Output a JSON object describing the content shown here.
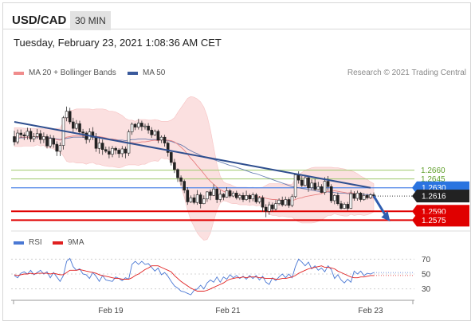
{
  "header": {
    "symbol": "USD/CAD",
    "timeframe": "30 MIN"
  },
  "datetime": "Tuesday, February 23, 2021 1:08:36 AM CET",
  "legend": {
    "ma20_label": "MA 20 + Bollinger Bands",
    "ma50_label": "MA 50",
    "credit": "Research © 2021 Trading Central",
    "rsi_label": "RSI",
    "ma9_label": "9MA"
  },
  "colors": {
    "bollinger": "#f4a6a6",
    "ma50": "#3a5a9c",
    "rsi": "#4a78d4",
    "ma9": "#e02020",
    "support": "#e00000",
    "resistance": "#9ec96b",
    "pivot": "#4f86e8"
  },
  "chart_data": {
    "type": "candlestick",
    "x_ticks": [
      "Feb 19",
      "Feb 21",
      "Feb 23"
    ],
    "levels": [
      {
        "value": 1.266,
        "label": "1.2660",
        "kind": "resistance"
      },
      {
        "value": 1.2645,
        "label": "1.2645",
        "kind": "resistance"
      },
      {
        "value": 1.263,
        "label": "1.2630",
        "kind": "pivot"
      },
      {
        "value": 1.259,
        "label": "1.2590",
        "kind": "support"
      },
      {
        "value": 1.2575,
        "label": "1.2575",
        "kind": "support"
      }
    ],
    "last_price": {
      "value": 1.2616,
      "label": "1.2616"
    },
    "price_ylim": [
      1.2566,
      1.2807
    ],
    "candles": [
      [
        1.2717,
        1.2708,
        1.2727,
        1.2702
      ],
      [
        1.2708,
        1.2723,
        1.2729,
        1.2704
      ],
      [
        1.2723,
        1.272,
        1.2729,
        1.2715
      ],
      [
        1.272,
        1.2718,
        1.2724,
        1.2711
      ],
      [
        1.2718,
        1.2726,
        1.2732,
        1.2712
      ],
      [
        1.2726,
        1.2713,
        1.2731,
        1.2708
      ],
      [
        1.2713,
        1.2717,
        1.2723,
        1.2708
      ],
      [
        1.2717,
        1.2722,
        1.273,
        1.2713
      ],
      [
        1.2722,
        1.2712,
        1.2728,
        1.2705
      ],
      [
        1.2712,
        1.2717,
        1.2724,
        1.2706
      ],
      [
        1.2717,
        1.2701,
        1.2721,
        1.2697
      ],
      [
        1.2701,
        1.2714,
        1.272,
        1.2697
      ],
      [
        1.2714,
        1.2704,
        1.2719,
        1.2698
      ],
      [
        1.2704,
        1.2692,
        1.2709,
        1.2684
      ],
      [
        1.2692,
        1.2702,
        1.2707,
        1.2684
      ],
      [
        1.2702,
        1.2749,
        1.2752,
        1.2695
      ],
      [
        1.2749,
        1.276,
        1.2768,
        1.2743
      ],
      [
        1.276,
        1.2742,
        1.2766,
        1.2738
      ],
      [
        1.2742,
        1.2731,
        1.2749,
        1.2725
      ],
      [
        1.2731,
        1.2739,
        1.2745,
        1.2728
      ],
      [
        1.2739,
        1.2725,
        1.2744,
        1.272
      ],
      [
        1.2725,
        1.2723,
        1.273,
        1.2715
      ],
      [
        1.2723,
        1.2712,
        1.2726,
        1.2705
      ],
      [
        1.2712,
        1.2725,
        1.2731,
        1.2707
      ],
      [
        1.2725,
        1.2716,
        1.2733,
        1.2711
      ],
      [
        1.2716,
        1.2697,
        1.2723,
        1.2691
      ],
      [
        1.2697,
        1.2706,
        1.2714,
        1.2688
      ],
      [
        1.2706,
        1.2695,
        1.2712,
        1.2686
      ],
      [
        1.2695,
        1.2692,
        1.27,
        1.2689
      ],
      [
        1.2692,
        1.2687,
        1.27,
        1.268
      ],
      [
        1.2687,
        1.2697,
        1.2701,
        1.2682
      ],
      [
        1.2697,
        1.2694,
        1.27,
        1.2687
      ],
      [
        1.2694,
        1.2688,
        1.2697,
        1.2681
      ],
      [
        1.2688,
        1.2696,
        1.2701,
        1.2682
      ],
      [
        1.2696,
        1.2689,
        1.27,
        1.268
      ],
      [
        1.2689,
        1.2725,
        1.2729,
        1.2684
      ],
      [
        1.2725,
        1.2738,
        1.2741,
        1.272
      ],
      [
        1.2738,
        1.2733,
        1.274,
        1.2728
      ],
      [
        1.2733,
        1.274,
        1.2747,
        1.2729
      ],
      [
        1.274,
        1.2734,
        1.2744,
        1.2727
      ],
      [
        1.2734,
        1.2735,
        1.2739,
        1.2729
      ],
      [
        1.2735,
        1.2728,
        1.274,
        1.2722
      ],
      [
        1.2728,
        1.272,
        1.2733,
        1.2715
      ],
      [
        1.272,
        1.2726,
        1.2729,
        1.2718
      ],
      [
        1.2726,
        1.2711,
        1.2729,
        1.2706
      ],
      [
        1.2711,
        1.2716,
        1.2719,
        1.2706
      ],
      [
        1.2716,
        1.2706,
        1.272,
        1.27
      ],
      [
        1.2706,
        1.269,
        1.2709,
        1.2683
      ],
      [
        1.269,
        1.2673,
        1.2693,
        1.2668
      ],
      [
        1.2673,
        1.2661,
        1.2679,
        1.2655
      ],
      [
        1.2661,
        1.2647,
        1.2663,
        1.264
      ],
      [
        1.2647,
        1.2641,
        1.2651,
        1.2634
      ],
      [
        1.2641,
        1.2626,
        1.2644,
        1.2621
      ],
      [
        1.2626,
        1.2606,
        1.2631,
        1.2601
      ],
      [
        1.2606,
        1.2613,
        1.2617,
        1.2604
      ],
      [
        1.2613,
        1.2605,
        1.2619,
        1.2602
      ],
      [
        1.2605,
        1.2618,
        1.2626,
        1.2601
      ],
      [
        1.2618,
        1.2603,
        1.2622,
        1.2595
      ],
      [
        1.2603,
        1.2611,
        1.2617,
        1.2602
      ],
      [
        1.2611,
        1.2623,
        1.2624,
        1.2606
      ],
      [
        1.2623,
        1.2617,
        1.2627,
        1.2609
      ],
      [
        1.2617,
        1.2628,
        1.2636,
        1.2616
      ],
      [
        1.2628,
        1.261,
        1.2631,
        1.2604
      ],
      [
        1.261,
        1.2619,
        1.2626,
        1.2606
      ],
      [
        1.2619,
        1.2614,
        1.2621,
        1.2609
      ],
      [
        1.2614,
        1.2625,
        1.2631,
        1.2613
      ],
      [
        1.2625,
        1.2616,
        1.2628,
        1.2613
      ],
      [
        1.2616,
        1.2621,
        1.2624,
        1.2614
      ],
      [
        1.2621,
        1.2613,
        1.2625,
        1.261
      ],
      [
        1.2613,
        1.2617,
        1.262,
        1.2609
      ],
      [
        1.2617,
        1.261,
        1.2622,
        1.2606
      ],
      [
        1.261,
        1.2617,
        1.2625,
        1.2608
      ],
      [
        1.2617,
        1.2611,
        1.262,
        1.2605
      ],
      [
        1.2611,
        1.2618,
        1.2622,
        1.2607
      ],
      [
        1.2618,
        1.2606,
        1.2621,
        1.2603
      ],
      [
        1.2606,
        1.2613,
        1.2616,
        1.2603
      ],
      [
        1.2613,
        1.2597,
        1.2617,
        1.2589
      ],
      [
        1.2597,
        1.259,
        1.2602,
        1.258
      ],
      [
        1.259,
        1.2601,
        1.2606,
        1.2584
      ],
      [
        1.2601,
        1.2594,
        1.2605,
        1.2589
      ],
      [
        1.2594,
        1.2603,
        1.2609,
        1.2591
      ],
      [
        1.2603,
        1.2609,
        1.2612,
        1.26
      ],
      [
        1.2609,
        1.2601,
        1.2615,
        1.2598
      ],
      [
        1.2601,
        1.261,
        1.2615,
        1.2599
      ],
      [
        1.261,
        1.26,
        1.2614,
        1.2596
      ],
      [
        1.26,
        1.2615,
        1.2619,
        1.2597
      ],
      [
        1.2615,
        1.2652,
        1.2654,
        1.2612
      ],
      [
        1.2652,
        1.2643,
        1.2658,
        1.2637
      ],
      [
        1.2643,
        1.2634,
        1.265,
        1.2631
      ],
      [
        1.2634,
        1.2647,
        1.2652,
        1.2632
      ],
      [
        1.2647,
        1.263,
        1.265,
        1.2623
      ],
      [
        1.263,
        1.2638,
        1.2644,
        1.2626
      ],
      [
        1.2638,
        1.2627,
        1.2645,
        1.2625
      ],
      [
        1.2627,
        1.2632,
        1.264,
        1.2626
      ],
      [
        1.2632,
        1.2622,
        1.2636,
        1.2621
      ],
      [
        1.2622,
        1.2641,
        1.2648,
        1.2618
      ],
      [
        1.2641,
        1.2632,
        1.265,
        1.2625
      ],
      [
        1.2632,
        1.2608,
        1.2636,
        1.2604
      ],
      [
        1.2608,
        1.2617,
        1.2619,
        1.2602
      ],
      [
        1.2617,
        1.2603,
        1.2622,
        1.26
      ],
      [
        1.2603,
        1.2595,
        1.2608,
        1.2593
      ],
      [
        1.2595,
        1.2602,
        1.2605,
        1.2594
      ],
      [
        1.2602,
        1.2595,
        1.2606,
        1.2591
      ],
      [
        1.2595,
        1.262,
        1.2626,
        1.2594
      ],
      [
        1.262,
        1.2612,
        1.2624,
        1.2608
      ],
      [
        1.2612,
        1.2621,
        1.2625,
        1.2608
      ],
      [
        1.2621,
        1.261,
        1.2623,
        1.2606
      ],
      [
        1.261,
        1.2617,
        1.2621,
        1.2608
      ],
      [
        1.2617,
        1.2613,
        1.262,
        1.261
      ],
      [
        1.2613,
        1.2618,
        1.2621,
        1.2611
      ],
      [
        1.2618,
        1.2616,
        1.2622,
        1.2612
      ]
    ],
    "ma20": [
      1.2716,
      1.2716,
      1.2716,
      1.2716,
      1.2716,
      1.2716,
      1.2716,
      1.2717,
      1.2716,
      1.2716,
      1.2714,
      1.2714,
      1.2713,
      1.2712,
      1.2711,
      1.2713,
      1.2716,
      1.2717,
      1.2718,
      1.2718,
      1.2718,
      1.2718,
      1.2717,
      1.2718,
      1.2718,
      1.2717,
      1.2717,
      1.2716,
      1.2715,
      1.2713,
      1.2713,
      1.2712,
      1.271,
      1.2709,
      1.2708,
      1.2707,
      1.2707,
      1.2706,
      1.2707,
      1.2708,
      1.2708,
      1.2709,
      1.271,
      1.2711,
      1.271,
      1.2712,
      1.2711,
      1.2711,
      1.271,
      1.2708,
      1.2704,
      1.2699,
      1.2694,
      1.2687,
      1.268,
      1.2674,
      1.2667,
      1.2661,
      1.2654,
      1.2647,
      1.2641,
      1.2636,
      1.2631,
      1.2627,
      1.2624,
      1.2622,
      1.262,
      1.2618,
      1.2617,
      1.2616,
      1.2616,
      1.2616,
      1.2615,
      1.2616,
      1.2614,
      1.2615,
      1.2614,
      1.2612,
      1.2611,
      1.261,
      1.261,
      1.2609,
      1.2609,
      1.2609,
      1.2608,
      1.2608,
      1.261,
      1.2612,
      1.2613,
      1.2615,
      1.2616,
      1.2617,
      1.2618,
      1.2619,
      1.262,
      1.2622,
      1.2624,
      1.2624,
      1.2625,
      1.2624,
      1.2623,
      1.2622,
      1.2621,
      1.2622,
      1.262,
      1.2619,
      1.2617,
      1.2615,
      1.2614,
      1.2613,
      1.2613
    ],
    "bb_upper": [
      1.2732,
      1.2732,
      1.2732,
      1.2731,
      1.2731,
      1.2731,
      1.2731,
      1.2731,
      1.2731,
      1.273,
      1.2731,
      1.273,
      1.273,
      1.2731,
      1.2731,
      1.2742,
      1.2757,
      1.2761,
      1.2762,
      1.2764,
      1.2764,
      1.2764,
      1.2764,
      1.2764,
      1.2763,
      1.2764,
      1.2764,
      1.2764,
      1.2763,
      1.276,
      1.276,
      1.2759,
      1.2756,
      1.2753,
      1.2748,
      1.2745,
      1.2745,
      1.2743,
      1.2746,
      1.2746,
      1.2746,
      1.2745,
      1.2745,
      1.2746,
      1.2745,
      1.2743,
      1.2743,
      1.2743,
      1.2745,
      1.2749,
      1.2758,
      1.2766,
      1.2774,
      1.2782,
      1.2785,
      1.2784,
      1.2781,
      1.2776,
      1.2767,
      1.2752,
      1.2729,
      1.2699,
      1.267,
      1.265,
      1.264,
      1.2637,
      1.2636,
      1.2633,
      1.2631,
      1.2631,
      1.2631,
      1.2631,
      1.263,
      1.2631,
      1.2629,
      1.263,
      1.2631,
      1.2634,
      1.2637,
      1.2637,
      1.2637,
      1.2637,
      1.2636,
      1.2637,
      1.2636,
      1.2636,
      1.2645,
      1.2652,
      1.2656,
      1.266,
      1.2662,
      1.2664,
      1.2665,
      1.2665,
      1.2665,
      1.2665,
      1.2665,
      1.2665,
      1.2664,
      1.2664,
      1.2663,
      1.2662,
      1.266,
      1.2659,
      1.2657,
      1.2654,
      1.265,
      1.2647,
      1.2644,
      1.264,
      1.2637
    ],
    "bb_lower": [
      1.27,
      1.27,
      1.27,
      1.2701,
      1.2701,
      1.2701,
      1.2701,
      1.2703,
      1.2701,
      1.2702,
      1.2697,
      1.2698,
      1.2696,
      1.2693,
      1.2691,
      1.2684,
      1.2675,
      1.2673,
      1.2674,
      1.2672,
      1.2672,
      1.2672,
      1.267,
      1.2672,
      1.2673,
      1.267,
      1.267,
      1.2668,
      1.2667,
      1.2666,
      1.2666,
      1.2665,
      1.2664,
      1.2665,
      1.2668,
      1.2669,
      1.2669,
      1.2669,
      1.2668,
      1.267,
      1.267,
      1.2673,
      1.2675,
      1.2676,
      1.2675,
      1.2681,
      1.2679,
      1.2679,
      1.2675,
      1.2667,
      1.265,
      1.2632,
      1.2614,
      1.2592,
      1.2575,
      1.2564,
      1.2553,
      1.2546,
      1.2541,
      1.2542,
      1.2553,
      1.2573,
      1.2592,
      1.2604,
      1.2608,
      1.2607,
      1.2604,
      1.2603,
      1.2603,
      1.2601,
      1.2601,
      1.2601,
      1.26,
      1.2601,
      1.2599,
      1.26,
      1.2597,
      1.259,
      1.2585,
      1.2583,
      1.2583,
      1.2581,
      1.2582,
      1.2581,
      1.258,
      1.258,
      1.2575,
      1.2572,
      1.257,
      1.257,
      1.257,
      1.257,
      1.2571,
      1.2573,
      1.2575,
      1.2579,
      1.2583,
      1.2583,
      1.2586,
      1.2584,
      1.2583,
      1.2582,
      1.2582,
      1.2585,
      1.2583,
      1.2584,
      1.2584,
      1.2583,
      1.2584,
      1.2586,
      1.2589
    ],
    "ma50": [
      1.2714,
      1.2714,
      1.2715,
      1.2715,
      1.2716,
      1.2716,
      1.2716,
      1.2716,
      1.2716,
      1.2716,
      1.2715,
      1.2715,
      1.2714,
      1.2713,
      1.2712,
      1.2713,
      1.2714,
      1.2715,
      1.2716,
      1.2716,
      1.2716,
      1.2716,
      1.2715,
      1.2716,
      1.2716,
      1.2715,
      1.2715,
      1.2714,
      1.2713,
      1.2712,
      1.2712,
      1.2712,
      1.2711,
      1.2711,
      1.271,
      1.2711,
      1.2712,
      1.2712,
      1.2713,
      1.2713,
      1.2713,
      1.2712,
      1.2712,
      1.2712,
      1.2712,
      1.2712,
      1.2711,
      1.271,
      1.2709,
      1.2707,
      1.2705,
      1.2703,
      1.27,
      1.2696,
      1.2693,
      1.269,
      1.2688,
      1.2685,
      1.2683,
      1.2681,
      1.2679,
      1.2678,
      1.2676,
      1.2674,
      1.2672,
      1.267,
      1.2668,
      1.2667,
      1.2665,
      1.2663,
      1.2661,
      1.2659,
      1.2657,
      1.2655,
      1.2654,
      1.2652,
      1.265,
      1.2648,
      1.2646,
      1.2644,
      1.2642,
      1.264,
      1.2638,
      1.2636,
      1.2634,
      1.2632,
      1.2631,
      1.263,
      1.2629,
      1.2628,
      1.2627,
      1.2626,
      1.2625,
      1.2624,
      1.2624,
      1.2623,
      1.2623,
      1.2622,
      1.2622,
      1.2621,
      1.2621,
      1.2621,
      1.262,
      1.262,
      1.262,
      1.2619,
      1.2619,
      1.2619,
      1.2618,
      1.2618,
      1.2618
    ],
    "trendline": {
      "start": [
        0,
        1.2742
      ],
      "end": [
        109,
        1.263
      ]
    },
    "forecast_arrow": {
      "start": [
        109,
        1.2616
      ],
      "end": [
        114,
        1.2577
      ]
    },
    "rsi": {
      "ylim": [
        20,
        80
      ],
      "ticks": [
        70,
        50,
        30
      ],
      "rsi": [
        48,
        45,
        51,
        53,
        50,
        55,
        49,
        52,
        55,
        50,
        53,
        45,
        52,
        46,
        40,
        48,
        67,
        71,
        60,
        55,
        57,
        50,
        49,
        44,
        52,
        47,
        40,
        48,
        42,
        41,
        40,
        46,
        44,
        41,
        45,
        43,
        63,
        67,
        63,
        67,
        63,
        64,
        59,
        54,
        58,
        49,
        52,
        47,
        40,
        34,
        31,
        27,
        26,
        24,
        22,
        28,
        30,
        35,
        30,
        38,
        42,
        39,
        46,
        39,
        46,
        43,
        49,
        45,
        48,
        44,
        47,
        43,
        48,
        44,
        48,
        42,
        47,
        39,
        36,
        45,
        41,
        46,
        50,
        45,
        50,
        45,
        60,
        70,
        66,
        61,
        66,
        57,
        61,
        55,
        58,
        53,
        61,
        56,
        44,
        49,
        42,
        38,
        43,
        39,
        54,
        50,
        54,
        48,
        51,
        50,
        52
      ],
      "ma9": [
        49,
        48,
        49,
        50,
        50,
        51,
        50,
        51,
        51,
        51,
        51,
        50,
        51,
        50,
        49,
        49,
        52,
        55,
        55,
        55,
        56,
        55,
        54,
        53,
        52,
        51,
        49,
        48,
        47,
        46,
        45,
        44,
        44,
        43,
        43,
        43,
        45,
        48,
        50,
        53,
        56,
        58,
        61,
        61,
        61,
        59,
        57,
        55,
        53,
        48,
        44,
        40,
        37,
        34,
        31,
        29,
        27,
        27,
        27,
        28,
        30,
        32,
        34,
        36,
        38,
        41,
        43,
        44,
        45,
        45,
        46,
        45,
        46,
        46,
        46,
        45,
        45,
        44,
        44,
        44,
        43,
        43,
        44,
        44,
        45,
        46,
        48,
        51,
        53,
        55,
        57,
        58,
        59,
        60,
        61,
        59,
        59,
        58,
        57,
        54,
        52,
        50,
        48,
        46,
        45,
        45,
        46,
        46,
        47,
        48,
        48
      ]
    }
  }
}
